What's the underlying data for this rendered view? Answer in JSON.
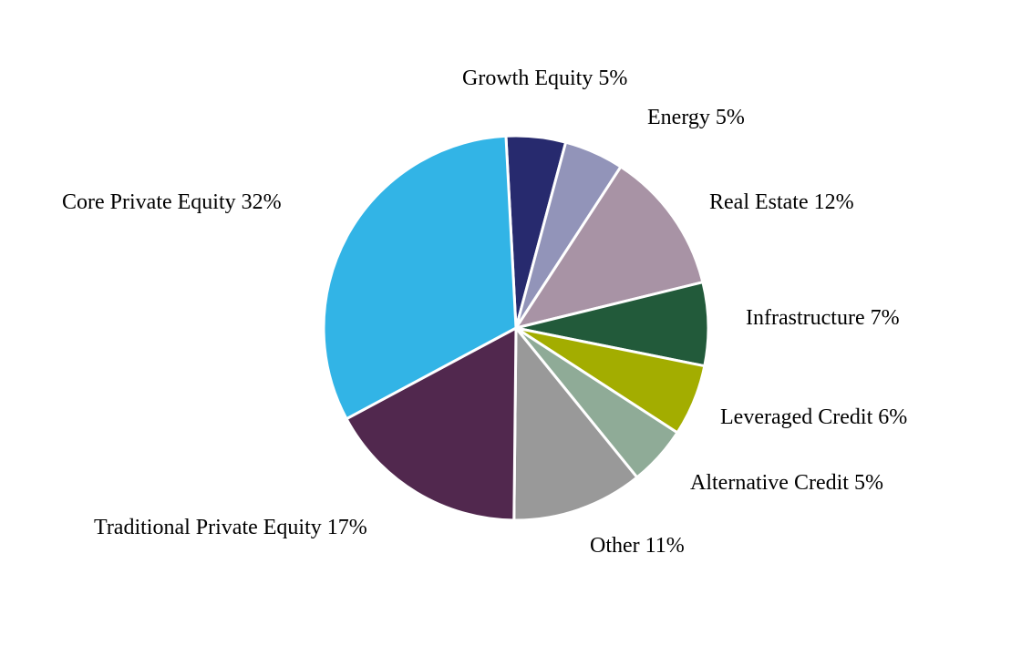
{
  "chart_data": {
    "type": "pie",
    "categories": [
      "Growth Equity",
      "Energy",
      "Real Estate",
      "Infrastructure",
      "Leveraged Credit",
      "Alternative Credit",
      "Other",
      "Traditional Private Equity",
      "Core Private Equity"
    ],
    "values": [
      5,
      5,
      12,
      7,
      6,
      5,
      11,
      17,
      32
    ],
    "value_labels": [
      "5%",
      "5%",
      "12%",
      "7%",
      "6%",
      "5%",
      "11%",
      "17%",
      "32%"
    ],
    "colors": [
      "#272a6e",
      "#9294b9",
      "#a893a5",
      "#225a3a",
      "#a3ad00",
      "#8fab97",
      "#999999",
      "#51284e",
      "#32b4e6"
    ]
  }
}
